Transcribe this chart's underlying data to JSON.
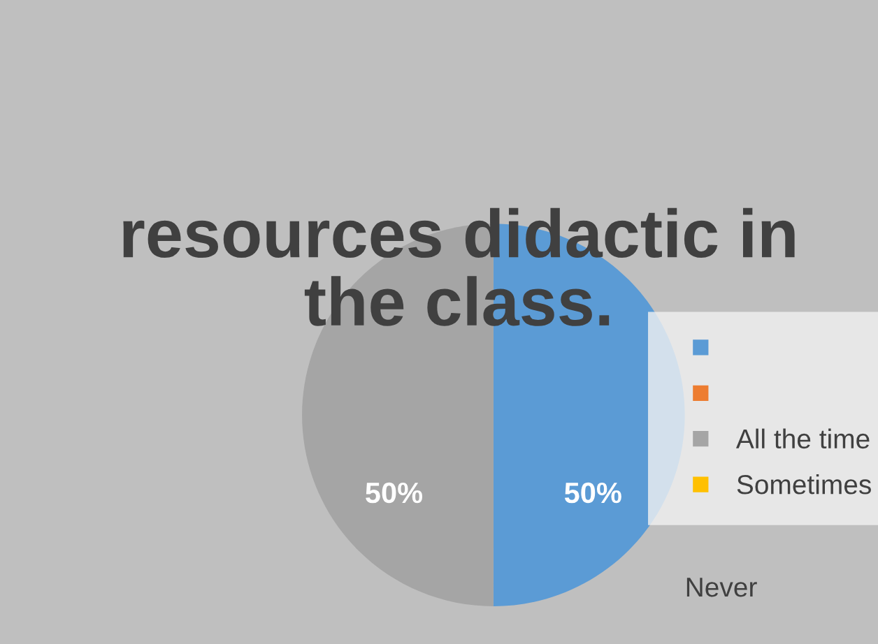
{
  "chart_data": {
    "type": "pie",
    "title": "resources didactic in the class.",
    "categories": [
      null,
      null,
      "All the time",
      "Sometimes"
    ],
    "values": [
      50,
      0,
      50,
      0
    ],
    "colors": [
      "#5b9bd5",
      "#ed7d31",
      "#a5a5a5",
      "#ffc000"
    ],
    "value_labels": [
      "50%",
      null,
      "50%",
      null
    ],
    "legend": "right",
    "annotations": [
      "Never"
    ]
  }
}
